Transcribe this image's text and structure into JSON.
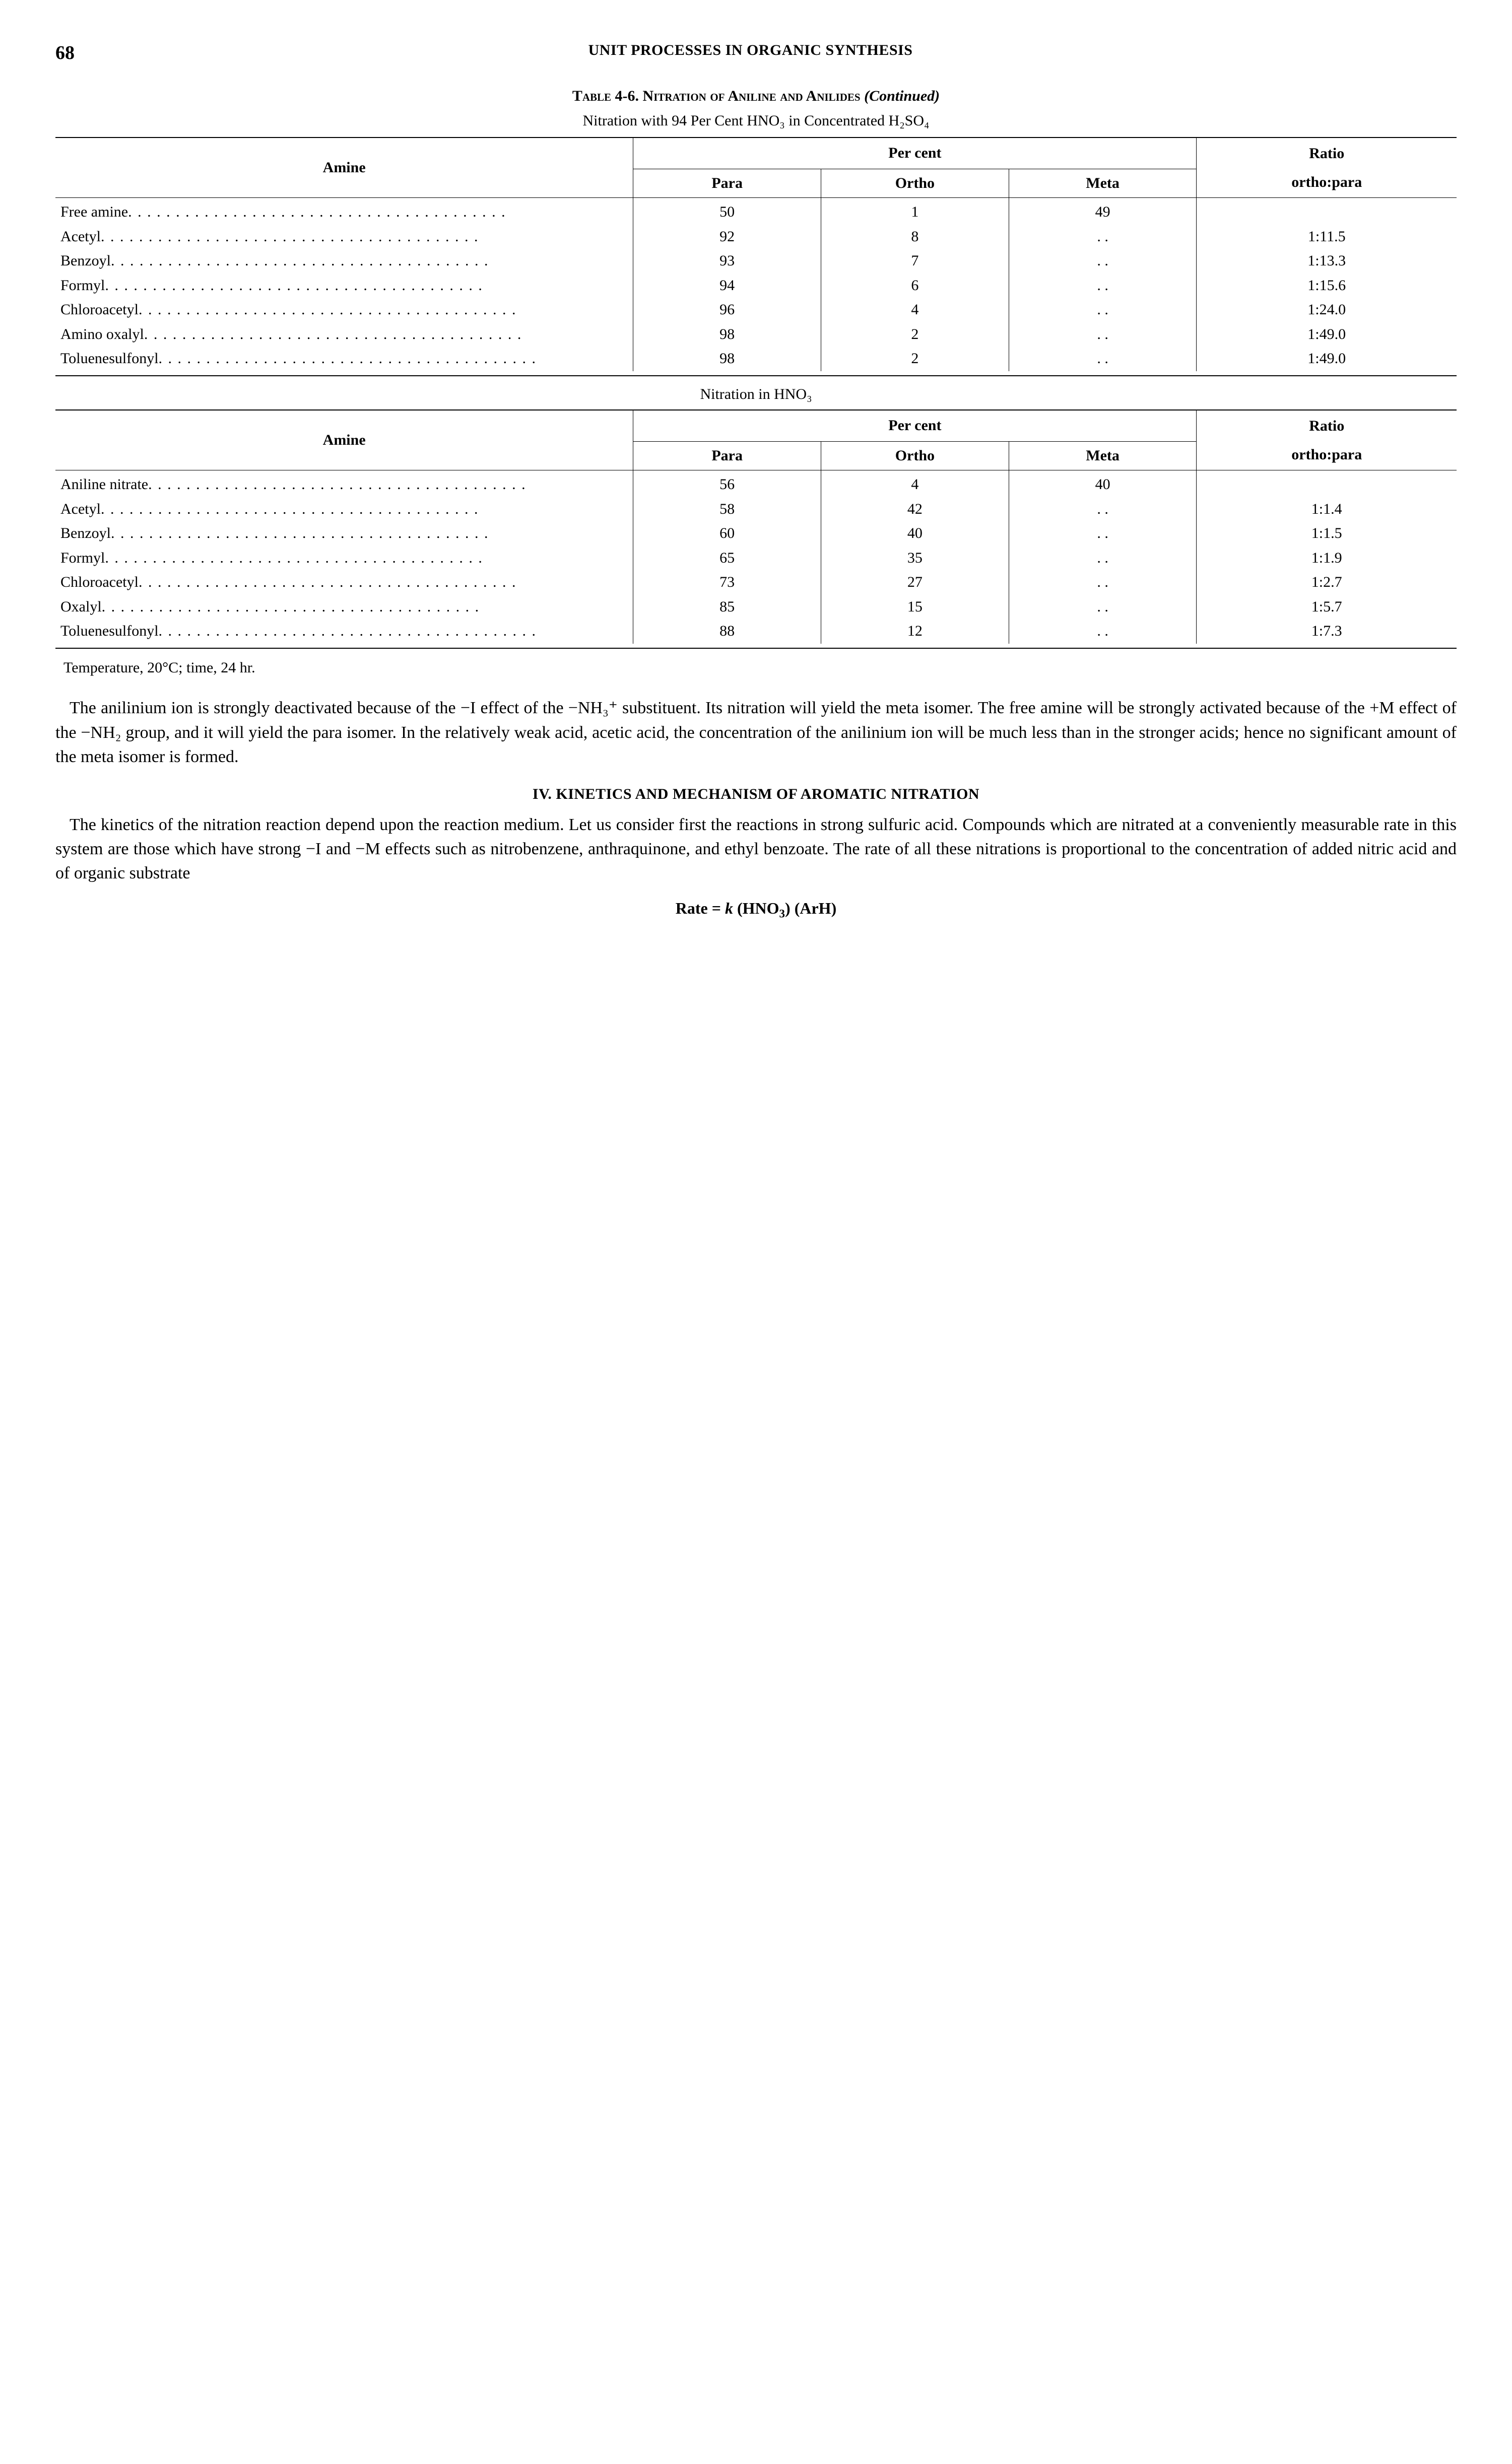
{
  "page_number": "68",
  "running_head": "UNIT PROCESSES IN ORGANIC SYNTHESIS",
  "table_caption_label": "Table 4-6. ",
  "table_caption_title": "Nitration of Aniline and Anilides",
  "table_caption_cont": " (Continued)",
  "table1_subtitle": "Nitration with 94 Per Cent HNO₃ in Concentrated H₂SO₄",
  "table2_subtitle": "Nitration in HNO₃",
  "col_amine": "Amine",
  "col_percent": "Per cent",
  "col_para": "Para",
  "col_ortho": "Ortho",
  "col_meta": "Meta",
  "col_ratio1": "Ratio",
  "col_ratio2": "ortho:para",
  "table1": {
    "rows": [
      {
        "amine": "Free amine",
        "para": "50",
        "ortho": "1",
        "meta": "49",
        "ratio": ""
      },
      {
        "amine": "Acetyl",
        "para": "92",
        "ortho": "8",
        "meta": ". .",
        "ratio": "1:11.5"
      },
      {
        "amine": "Benzoyl",
        "para": "93",
        "ortho": "7",
        "meta": ". .",
        "ratio": "1:13.3"
      },
      {
        "amine": "Formyl",
        "para": "94",
        "ortho": "6",
        "meta": ". .",
        "ratio": "1:15.6"
      },
      {
        "amine": "Chloroacetyl",
        "para": "96",
        "ortho": "4",
        "meta": ". .",
        "ratio": "1:24.0"
      },
      {
        "amine": "Amino oxalyl",
        "para": "98",
        "ortho": "2",
        "meta": ". .",
        "ratio": "1:49.0"
      },
      {
        "amine": "Toluenesulfonyl",
        "para": "98",
        "ortho": "2",
        "meta": ". .",
        "ratio": "1:49.0"
      }
    ]
  },
  "table2": {
    "rows": [
      {
        "amine": "Aniline nitrate",
        "para": "56",
        "ortho": "4",
        "meta": "40",
        "ratio": ""
      },
      {
        "amine": "Acetyl",
        "para": "58",
        "ortho": "42",
        "meta": ". .",
        "ratio": "1:1.4"
      },
      {
        "amine": "Benzoyl",
        "para": "60",
        "ortho": "40",
        "meta": ". .",
        "ratio": "1:1.5"
      },
      {
        "amine": "Formyl",
        "para": "65",
        "ortho": "35",
        "meta": ". .",
        "ratio": "1:1.9"
      },
      {
        "amine": "Chloroacetyl",
        "para": "73",
        "ortho": "27",
        "meta": ". .",
        "ratio": "1:2.7"
      },
      {
        "amine": "Oxalyl",
        "para": "85",
        "ortho": "15",
        "meta": ". .",
        "ratio": "1:5.7"
      },
      {
        "amine": "Toluenesulfonyl",
        "para": "88",
        "ortho": "12",
        "meta": ". .",
        "ratio": "1:7.3"
      }
    ]
  },
  "footnote": "Temperature, 20°C; time, 24 hr.",
  "para1": "The anilinium ion is strongly deactivated because of the −I effect of the −NH₃⁺ substituent.  Its nitration will yield the meta isomer.  The free amine will be strongly activated because of the +M effect of the −NH₂ group, and it will yield the para isomer.  In the relatively weak acid, acetic acid, the concentration of the anilinium ion will be much less than in the stronger acids; hence no significant amount of the meta isomer is formed.",
  "section_head": "IV. KINETICS AND MECHANISM OF AROMATIC NITRATION",
  "para2": "The kinetics of the nitration reaction depend upon the reaction medium. Let us consider first the reactions in strong sulfuric acid.  Compounds which are nitrated at a conveniently measurable rate in this system are those which have strong −I and −M effects such as nitrobenzene, anthraquinone, and ethyl benzoate.  The rate of all these nitrations is proportional to the concentration of added nitric acid and of organic substrate",
  "equation": "Rate = k (HNO₃) (ArH)"
}
